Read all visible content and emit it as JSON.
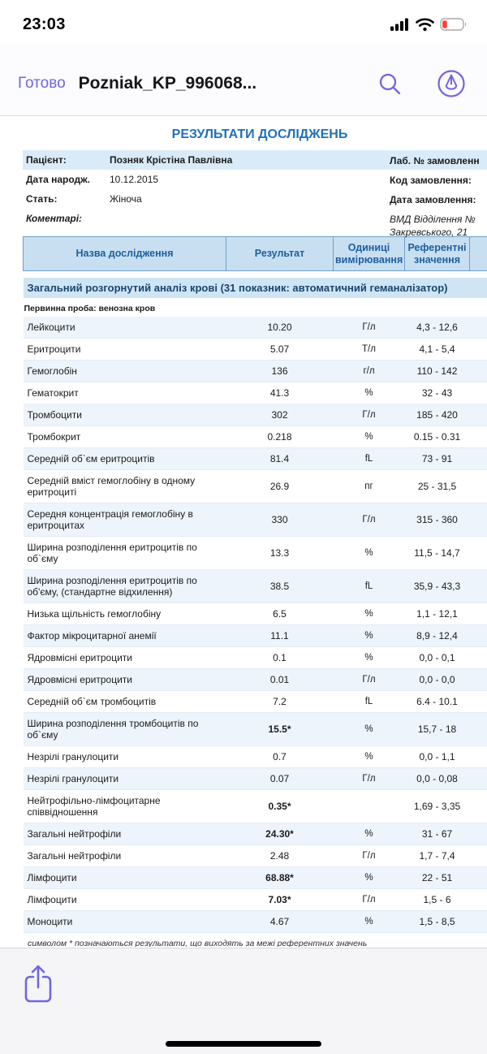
{
  "status_bar": {
    "time": "23:03"
  },
  "nav_bar": {
    "done_label": "Готово",
    "title": "Pozniak_KP_996068..."
  },
  "document": {
    "title": "РЕЗУЛЬТАТИ ДОСЛІДЖЕНЬ",
    "patient_info": {
      "rows": [
        {
          "label": "Пацієнт:",
          "value": "Позняк Крістіна Павлівна",
          "right_lines": [
            "Лаб. № замовленн"
          ],
          "highlight": true,
          "value_bold": true
        },
        {
          "label": "Дата народж.",
          "value": "10.12.2015",
          "right_lines": [
            "Код замовлення:"
          ]
        },
        {
          "label": "Стать:",
          "value": "Жіноча",
          "right_lines": [
            "Дата замовлення:"
          ]
        },
        {
          "label": "Коментарі:",
          "value": "",
          "right_lines": [
            "ВМД Відділення №",
            "Закревського, 21"
          ],
          "italic": true,
          "right_italic": true
        }
      ]
    },
    "table": {
      "headers": [
        "Назва дослідження",
        "Результат",
        "Одиниці вимірювання",
        "Референтні значення"
      ],
      "section_title": "Загальний розгорнутий аналіз крові (31 показник: автоматичний геманалізатор)",
      "subsection": "Первинна проба: венозна кров",
      "rows": [
        {
          "name": "Лейкоцити",
          "result": "10.20",
          "unit": "Г/л",
          "ref": "4,3 - 12,6"
        },
        {
          "name": "Еритроцити",
          "result": "5.07",
          "unit": "Т/л",
          "ref": "4,1 - 5,4"
        },
        {
          "name": "Гемоглобін",
          "result": "136",
          "unit": "г/л",
          "ref": "110 - 142"
        },
        {
          "name": "Гематокрит",
          "result": "41.3",
          "unit": "%",
          "ref": "32 - 43"
        },
        {
          "name": "Тромбоцити",
          "result": "302",
          "unit": "Г/л",
          "ref": "185 - 420"
        },
        {
          "name": "Тромбокрит",
          "result": "0.218",
          "unit": "%",
          "ref": "0.15 - 0.31"
        },
        {
          "name": "Середній об`єм еритроцитів",
          "result": "81.4",
          "unit": "fL",
          "ref": "73 - 91"
        },
        {
          "name": "Середній вміст гемоглобіну в одному еритроциті",
          "result": "26.9",
          "unit": "пг",
          "ref": "25 - 31,5"
        },
        {
          "name": "Середня концентрація гемоглобіну в еритроцитах",
          "result": "330",
          "unit": "Г/л",
          "ref": "315 - 360"
        },
        {
          "name": "Ширина розподілення еритроцитів по об`єму",
          "result": "13.3",
          "unit": "%",
          "ref": "11,5 - 14,7"
        },
        {
          "name": "Ширина розподілення еритроцитів по об'єму, (стандартне відхилення)",
          "result": "38.5",
          "unit": "fL",
          "ref": "35,9 - 43,3"
        },
        {
          "name": "Низька щільність гемоглобіну",
          "result": "6.5",
          "unit": "%",
          "ref": "1,1 - 12,1"
        },
        {
          "name": "Фактор мікроцитарної анемії",
          "result": "11.1",
          "unit": "%",
          "ref": "8,9 - 12,4"
        },
        {
          "name": "Ядровмісні еритроцити",
          "result": "0.1",
          "unit": "%",
          "ref": "0,0 - 0,1"
        },
        {
          "name": "Ядровмісні еритроцити",
          "result": "0.01",
          "unit": "Г/л",
          "ref": "0,0 - 0,0"
        },
        {
          "name": "Середній об`єм тромбоцитів",
          "result": "7.2",
          "unit": "fL",
          "ref": "6.4 - 10.1"
        },
        {
          "name": "Ширина розподілення тромбоцитів по об`єму",
          "result": "15.5*",
          "unit": "%",
          "ref": "15,7 - 18"
        },
        {
          "name": "Незрілі гранулоцити",
          "result": "0.7",
          "unit": "%",
          "ref": "0,0 - 1,1"
        },
        {
          "name": "Незрілі гранулоцити",
          "result": "0.07",
          "unit": "Г/л",
          "ref": "0,0 - 0,08"
        },
        {
          "name": "Нейтрофільно-лімфоцитарне співвідношення",
          "result": "0.35*",
          "unit": "",
          "ref": "1,69 - 3,35"
        },
        {
          "name": "Загальні нейтрофіли",
          "result": "24.30*",
          "unit": "%",
          "ref": "31 - 67"
        },
        {
          "name": "Загальні нейтрофіли",
          "result": "2.48",
          "unit": "Г/л",
          "ref": "1,7 - 7,4"
        },
        {
          "name": "Лімфоцити",
          "result": "68.88*",
          "unit": "%",
          "ref": "22 - 51"
        },
        {
          "name": "Лімфоцити",
          "result": "7.03*",
          "unit": "Г/л",
          "ref": "1,5 - 6"
        },
        {
          "name": "Моноцити",
          "result": "4.67",
          "unit": "%",
          "ref": "1,5 - 8,5"
        }
      ]
    },
    "footnote": "символом * позначаються результати, що виходять за межі референтних значень"
  },
  "colors": {
    "accent_purple": "#7066e0",
    "doc_blue": "#2170b8",
    "header_cell_bg": "#c8dff2",
    "section_bg": "#cfe5f5",
    "alt_row_bg": "#edf4fb",
    "highlight_row_bg": "#d9ebf8",
    "battery_red": "#ff3b30"
  }
}
